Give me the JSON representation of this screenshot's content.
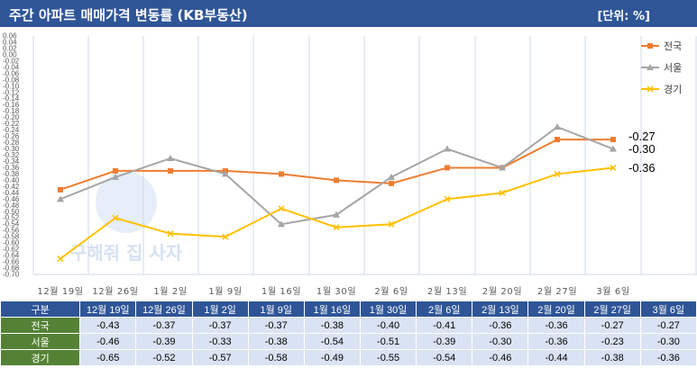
{
  "header": {
    "title": "주간 아파트 매매가격 변동률 (KB부동산)",
    "unit": "[단위: %]"
  },
  "chart_data": {
    "type": "line",
    "categories": [
      "12월 19일",
      "12월 26일",
      "1월 2일",
      "1월 9일",
      "1월 16일",
      "1월 30일",
      "2월 6일",
      "2월 13일",
      "2월 20일",
      "2월 27일",
      "3월 6일"
    ],
    "series": [
      {
        "name": "전국",
        "color": "#ed7d31",
        "marker": "square",
        "values": [
          -0.43,
          -0.37,
          -0.37,
          -0.37,
          -0.38,
          -0.4,
          -0.41,
          -0.36,
          -0.36,
          -0.27,
          -0.27
        ]
      },
      {
        "name": "서울",
        "color": "#a5a5a5",
        "marker": "triangle",
        "values": [
          -0.46,
          -0.39,
          -0.33,
          -0.38,
          -0.54,
          -0.51,
          -0.39,
          -0.3,
          -0.36,
          -0.23,
          -0.3
        ]
      },
      {
        "name": "경기",
        "color": "#ffc000",
        "marker": "x",
        "values": [
          -0.65,
          -0.52,
          -0.57,
          -0.58,
          -0.49,
          -0.55,
          -0.54,
          -0.46,
          -0.44,
          -0.38,
          -0.36
        ]
      }
    ],
    "ylim": [
      -0.7,
      0.06
    ],
    "ytick_step": 0.02,
    "end_labels": [
      "-0.27",
      "-0.30",
      "-0.36"
    ],
    "legend": "top-right",
    "grid": "vertical"
  },
  "table": {
    "header_label": "구분",
    "columns": [
      "12월 19일",
      "12월 26일",
      "1월 2일",
      "1월 9일",
      "1월 16일",
      "1월 30일",
      "2월 6일",
      "2월 13일",
      "2월 20일",
      "2월 27일",
      "3월 6일"
    ],
    "rows": [
      {
        "label": "전국",
        "values": [
          "-0.43",
          "-0.37",
          "-0.37",
          "-0.37",
          "-0.38",
          "-0.40",
          "-0.41",
          "-0.36",
          "-0.36",
          "-0.27",
          "-0.27"
        ]
      },
      {
        "label": "서울",
        "values": [
          "-0.46",
          "-0.39",
          "-0.33",
          "-0.38",
          "-0.54",
          "-0.51",
          "-0.39",
          "-0.30",
          "-0.36",
          "-0.23",
          "-0.30"
        ]
      },
      {
        "label": "경기",
        "values": [
          "-0.65",
          "-0.52",
          "-0.57",
          "-0.58",
          "-0.49",
          "-0.55",
          "-0.54",
          "-0.46",
          "-0.44",
          "-0.38",
          "-0.36"
        ]
      }
    ]
  },
  "watermark": {
    "text": "구해줘 집 사자"
  }
}
